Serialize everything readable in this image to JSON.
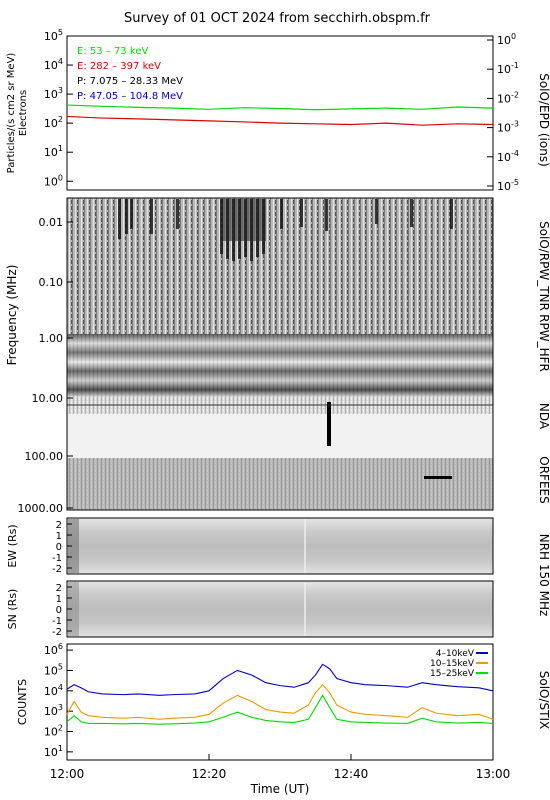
{
  "title": "Survey of 01 OCT 2024 from secchirh.obspm.fr",
  "colors": {
    "green": "#00dd00",
    "red": "#dd0000",
    "blue": "#0000cc",
    "orange": "#ee9900",
    "black": "#000000"
  },
  "chart_data": [
    {
      "type": "line",
      "name": "particles",
      "ylabel": "Particles/(s cm2 sr MeV)",
      "ylabel2": "Electrons",
      "right_label": "SolO/EPD  (ions)",
      "yscale": "log",
      "left_ticks": [
        "10^0",
        "10^1",
        "10^2",
        "10^3",
        "10^4",
        "10^5"
      ],
      "right_ticks": [
        "10^-5",
        "10^-4",
        "10^-3",
        "10^-2",
        "10^-1",
        "10^0"
      ],
      "ylim": [
        0.5,
        100000
      ],
      "legend": [
        {
          "label": "E: 53 – 73 keV",
          "color": "#00dd00"
        },
        {
          "label": "E: 282 – 397 keV",
          "color": "#dd0000"
        },
        {
          "label": "P: 7.075 – 28.33 MeV",
          "color": "#000000"
        },
        {
          "label": "P: 47.05 – 104.8 MeV",
          "color": "#0000cc"
        }
      ],
      "x_minutes": [
        0,
        5,
        10,
        15,
        20,
        25,
        30,
        35,
        40,
        45,
        50,
        55,
        60
      ],
      "series": [
        {
          "name": "E: 53 – 73 keV",
          "color": "#00dd00",
          "values": [
            420,
            380,
            350,
            330,
            300,
            340,
            320,
            290,
            310,
            330,
            300,
            360,
            330
          ]
        },
        {
          "name": "E: 282 – 397 keV",
          "color": "#dd0000",
          "values": [
            170,
            150,
            140,
            130,
            120,
            110,
            100,
            95,
            90,
            100,
            85,
            95,
            90
          ]
        }
      ]
    },
    {
      "type": "heatmap",
      "name": "radio-spectrogram",
      "ylabel": "Frequency (MHz)",
      "yticks": [
        "0.01",
        "0.10",
        "1.00",
        "10.00",
        "100.00",
        "1000.00"
      ],
      "instruments": [
        "SolO/RPW_TNR",
        "RPW_HFR",
        "NDA",
        "ORFEES"
      ]
    },
    {
      "type": "heatmap",
      "name": "nrh-ew",
      "ylabel": "EW (Rs)",
      "yticks": [
        "2",
        "1",
        "0",
        "-1",
        "-2"
      ],
      "instrument": "NRH 150 MHz"
    },
    {
      "type": "heatmap",
      "name": "nrh-sn",
      "ylabel": "SN (Rs)",
      "yticks": [
        "2",
        "1",
        "0",
        "-1",
        "-2"
      ]
    },
    {
      "type": "line",
      "name": "stix",
      "ylabel": "COUNTS",
      "right_label": "SolO/STIX",
      "yscale": "log",
      "yticks": [
        "10^1",
        "10^2",
        "10^3",
        "10^4",
        "10^5",
        "10^6"
      ],
      "ylim": [
        10,
        1000000
      ],
      "xticks": [
        "12:00",
        "12:20",
        "12:40",
        "13:00"
      ],
      "xlabel": "Time (UT)",
      "x_minutes": [
        0,
        1,
        2,
        3,
        5,
        8,
        10,
        13,
        15,
        18,
        20,
        22,
        24,
        26,
        28,
        30,
        32,
        34,
        35,
        36,
        37,
        38,
        40,
        42,
        45,
        48,
        50,
        52,
        55,
        58,
        60
      ],
      "series": [
        {
          "name": "4–10keV",
          "color": "#0000cc",
          "values": [
            12000,
            20000,
            14000,
            9000,
            7000,
            6500,
            7000,
            6000,
            6500,
            7000,
            10000,
            40000,
            100000,
            60000,
            25000,
            18000,
            15000,
            25000,
            60000,
            200000,
            120000,
            40000,
            25000,
            20000,
            18000,
            15000,
            25000,
            20000,
            16000,
            14000,
            10000
          ]
        },
        {
          "name": "10–15keV",
          "color": "#ee9900",
          "values": [
            700,
            3000,
            900,
            600,
            500,
            450,
            500,
            400,
            450,
            500,
            700,
            2500,
            6000,
            3000,
            1200,
            900,
            800,
            2000,
            8000,
            20000,
            8000,
            2000,
            900,
            700,
            600,
            500,
            1500,
            800,
            600,
            700,
            400
          ]
        },
        {
          "name": "15–25keV",
          "color": "#00dd00",
          "values": [
            300,
            600,
            300,
            250,
            250,
            240,
            250,
            230,
            240,
            260,
            300,
            500,
            900,
            500,
            350,
            300,
            280,
            400,
            1500,
            6000,
            1500,
            400,
            300,
            280,
            260,
            250,
            450,
            300,
            260,
            280,
            250
          ]
        }
      ]
    }
  ]
}
